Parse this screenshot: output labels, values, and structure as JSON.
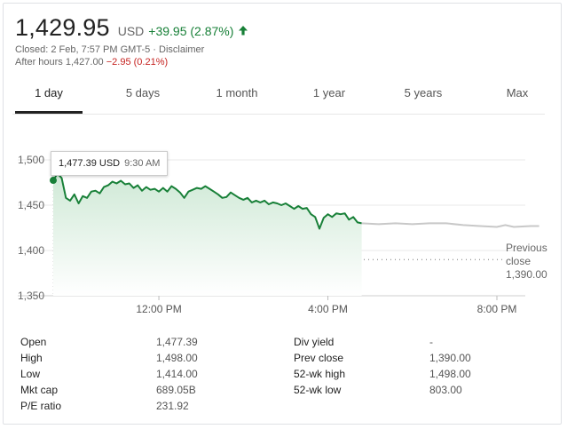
{
  "quote": {
    "price": "1,429.95",
    "currency": "USD",
    "change": "+39.95 (2.87%)",
    "closed_line": "Closed: 2 Feb, 7:57 PM GMT-5 · Disclaimer",
    "after_hours_label": "After hours 1,427.00",
    "after_hours_change": "−2.95 (0.21%)"
  },
  "tabs": [
    "1 day",
    "5 days",
    "1 month",
    "1 year",
    "5 years",
    "Max"
  ],
  "tooltip": {
    "value": "1,477.39 USD",
    "time": "9:30 AM"
  },
  "previous_close": {
    "label_line1": "Previous",
    "label_line2": "close",
    "value": "1,390.00"
  },
  "chart_data": {
    "type": "line",
    "y_ticks": [
      "1,500",
      "1,450",
      "1,400",
      "1,350"
    ],
    "x_ticks": [
      "12:00 PM",
      "4:00 PM",
      "8:00 PM"
    ],
    "ylim": [
      1350,
      1500
    ],
    "previous_close": 1390,
    "colors": {
      "regular": "#188038",
      "after_hours": "#c8c8c8",
      "fill": "#e6f4ea",
      "grid": "#e8e8e8"
    },
    "series": [
      {
        "values": [
          [
            9.5,
            1477.39
          ],
          [
            9.6,
            1485
          ],
          [
            9.7,
            1480
          ],
          [
            9.8,
            1458
          ],
          [
            9.9,
            1455
          ],
          [
            10.0,
            1462
          ],
          [
            10.1,
            1452
          ],
          [
            10.2,
            1460
          ],
          [
            10.3,
            1458
          ],
          [
            10.4,
            1465
          ],
          [
            10.5,
            1466
          ],
          [
            10.6,
            1463
          ],
          [
            10.7,
            1470
          ],
          [
            10.8,
            1472
          ],
          [
            10.9,
            1476
          ],
          [
            11.0,
            1474
          ],
          [
            11.1,
            1477
          ],
          [
            11.2,
            1473
          ],
          [
            11.3,
            1474
          ],
          [
            11.4,
            1469
          ],
          [
            11.5,
            1472
          ],
          [
            11.6,
            1466
          ],
          [
            11.7,
            1470
          ],
          [
            11.8,
            1467
          ],
          [
            11.9,
            1468
          ],
          [
            12.0,
            1465
          ],
          [
            12.1,
            1469
          ],
          [
            12.2,
            1465
          ],
          [
            12.3,
            1471
          ],
          [
            12.4,
            1468
          ],
          [
            12.5,
            1464
          ],
          [
            12.6,
            1458
          ],
          [
            12.7,
            1465
          ],
          [
            12.8,
            1467
          ],
          [
            12.9,
            1469
          ],
          [
            13.0,
            1468
          ],
          [
            13.1,
            1471
          ],
          [
            13.2,
            1468
          ],
          [
            13.3,
            1465
          ],
          [
            13.4,
            1462
          ],
          [
            13.5,
            1458
          ],
          [
            13.6,
            1459
          ],
          [
            13.7,
            1464
          ],
          [
            13.8,
            1461
          ],
          [
            13.9,
            1458
          ],
          [
            14.0,
            1456
          ],
          [
            14.1,
            1458
          ],
          [
            14.2,
            1453
          ],
          [
            14.3,
            1455
          ],
          [
            14.4,
            1453
          ],
          [
            14.5,
            1455
          ],
          [
            14.6,
            1451
          ],
          [
            14.7,
            1453
          ],
          [
            14.8,
            1452
          ],
          [
            14.9,
            1450
          ],
          [
            15.0,
            1452
          ],
          [
            15.1,
            1449
          ],
          [
            15.2,
            1446
          ],
          [
            15.3,
            1449
          ],
          [
            15.4,
            1446
          ],
          [
            15.5,
            1447
          ],
          [
            15.6,
            1440
          ],
          [
            15.7,
            1437
          ],
          [
            15.8,
            1424
          ],
          [
            15.9,
            1436
          ],
          [
            16.0,
            1440
          ],
          [
            16.1,
            1437
          ],
          [
            16.2,
            1441
          ],
          [
            16.3,
            1440
          ],
          [
            16.4,
            1441
          ],
          [
            16.5,
            1434
          ],
          [
            16.6,
            1437
          ],
          [
            16.7,
            1431
          ],
          [
            16.8,
            1430
          ]
        ]
      },
      {
        "values": [
          [
            16.8,
            1430
          ],
          [
            17.2,
            1429
          ],
          [
            17.6,
            1430
          ],
          [
            18.0,
            1429
          ],
          [
            18.4,
            1430
          ],
          [
            18.8,
            1430
          ],
          [
            19.2,
            1428
          ],
          [
            19.6,
            1427
          ],
          [
            20.0,
            1426
          ],
          [
            20.2,
            1428
          ],
          [
            20.4,
            1426
          ],
          [
            20.8,
            1427
          ],
          [
            21.0,
            1427
          ]
        ]
      }
    ]
  },
  "stats": {
    "left": [
      {
        "label": "Open",
        "value": "1,477.39"
      },
      {
        "label": "High",
        "value": "1,498.00"
      },
      {
        "label": "Low",
        "value": "1,414.00"
      },
      {
        "label": "Mkt cap",
        "value": "689.05B"
      },
      {
        "label": "P/E ratio",
        "value": "231.92"
      }
    ],
    "right": [
      {
        "label": "Div yield",
        "value": "-"
      },
      {
        "label": "Prev close",
        "value": "1,390.00"
      },
      {
        "label": "52-wk high",
        "value": "1,498.00"
      },
      {
        "label": "52-wk low",
        "value": "803.00"
      }
    ]
  }
}
